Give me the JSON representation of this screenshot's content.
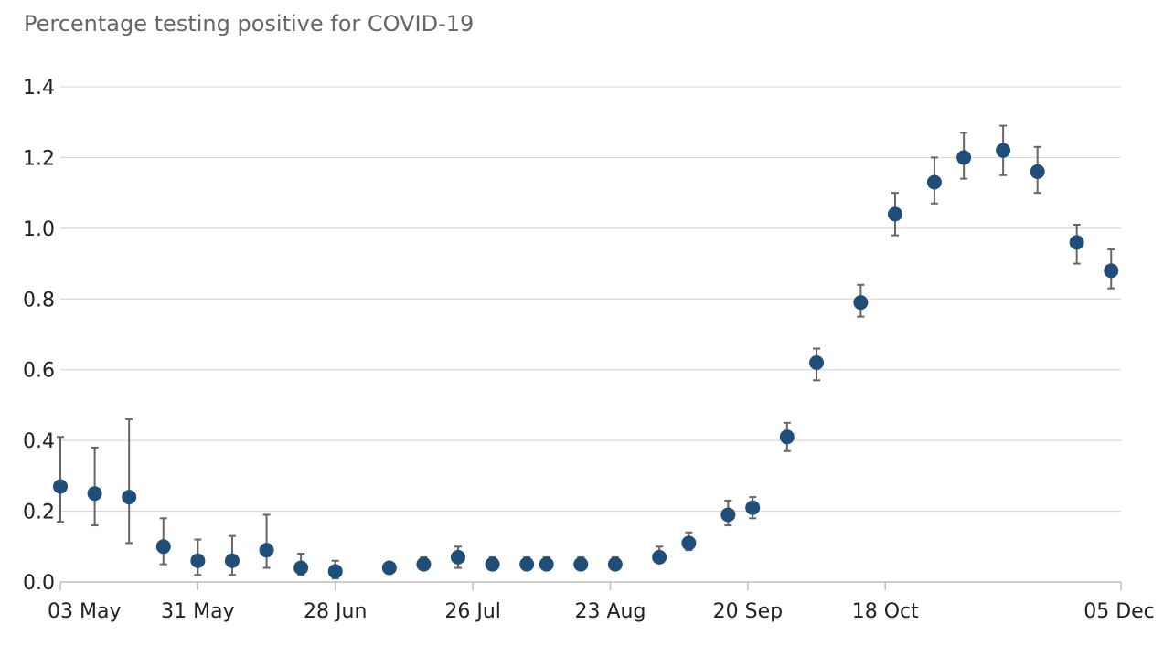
{
  "chart_data": {
    "type": "scatter",
    "title": "Percentage testing positive for COVID-19",
    "xlabel": "",
    "ylabel": "",
    "x_ticks": [
      "03 May",
      "31 May",
      "28 Jun",
      "26 Jul",
      "23 Aug",
      "20 Sep",
      "18 Oct",
      "05 Dec"
    ],
    "y_ticks": [
      "0.0",
      "0.2",
      "0.4",
      "0.6",
      "0.8",
      "1.0",
      "1.2",
      "1.4"
    ],
    "ylim": [
      0,
      1.4
    ],
    "xlim": [
      "2020-05-03",
      "2020-12-05"
    ],
    "grid": true,
    "error_bars": true,
    "colors": {
      "point": "#1f4e79",
      "error_bar": "#666666",
      "grid": "#d9d9d9"
    },
    "points": [
      {
        "x": "2020-05-03",
        "y": 0.27,
        "lo": 0.17,
        "hi": 0.41
      },
      {
        "x": "2020-05-10",
        "y": 0.25,
        "lo": 0.16,
        "hi": 0.38
      },
      {
        "x": "2020-05-17",
        "y": 0.24,
        "lo": 0.11,
        "hi": 0.46
      },
      {
        "x": "2020-05-24",
        "y": 0.1,
        "lo": 0.05,
        "hi": 0.18
      },
      {
        "x": "2020-05-31",
        "y": 0.06,
        "lo": 0.02,
        "hi": 0.12
      },
      {
        "x": "2020-06-07",
        "y": 0.06,
        "lo": 0.02,
        "hi": 0.13
      },
      {
        "x": "2020-06-14",
        "y": 0.09,
        "lo": 0.04,
        "hi": 0.19
      },
      {
        "x": "2020-06-21",
        "y": 0.04,
        "lo": 0.02,
        "hi": 0.08
      },
      {
        "x": "2020-06-28",
        "y": 0.03,
        "lo": 0.01,
        "hi": 0.06
      },
      {
        "x": "2020-07-09",
        "y": 0.04,
        "lo": 0.03,
        "hi": 0.05
      },
      {
        "x": "2020-07-16",
        "y": 0.05,
        "lo": 0.04,
        "hi": 0.07
      },
      {
        "x": "2020-07-23",
        "y": 0.07,
        "lo": 0.04,
        "hi": 0.1
      },
      {
        "x": "2020-07-30",
        "y": 0.05,
        "lo": 0.04,
        "hi": 0.07
      },
      {
        "x": "2020-08-06",
        "y": 0.05,
        "lo": 0.04,
        "hi": 0.07
      },
      {
        "x": "2020-08-10",
        "y": 0.05,
        "lo": 0.04,
        "hi": 0.07
      },
      {
        "x": "2020-08-17",
        "y": 0.05,
        "lo": 0.04,
        "hi": 0.07
      },
      {
        "x": "2020-08-24",
        "y": 0.05,
        "lo": 0.04,
        "hi": 0.07
      },
      {
        "x": "2020-09-02",
        "y": 0.07,
        "lo": 0.06,
        "hi": 0.1
      },
      {
        "x": "2020-09-08",
        "y": 0.11,
        "lo": 0.09,
        "hi": 0.14
      },
      {
        "x": "2020-09-16",
        "y": 0.19,
        "lo": 0.16,
        "hi": 0.23
      },
      {
        "x": "2020-09-21",
        "y": 0.21,
        "lo": 0.18,
        "hi": 0.24
      },
      {
        "x": "2020-09-28",
        "y": 0.41,
        "lo": 0.37,
        "hi": 0.45
      },
      {
        "x": "2020-10-04",
        "y": 0.62,
        "lo": 0.57,
        "hi": 0.66
      },
      {
        "x": "2020-10-13",
        "y": 0.79,
        "lo": 0.75,
        "hi": 0.84
      },
      {
        "x": "2020-10-20",
        "y": 1.04,
        "lo": 0.98,
        "hi": 1.1
      },
      {
        "x": "2020-10-28",
        "y": 1.13,
        "lo": 1.07,
        "hi": 1.2
      },
      {
        "x": "2020-11-03",
        "y": 1.2,
        "lo": 1.14,
        "hi": 1.27
      },
      {
        "x": "2020-11-11",
        "y": 1.22,
        "lo": 1.15,
        "hi": 1.29
      },
      {
        "x": "2020-11-18",
        "y": 1.16,
        "lo": 1.1,
        "hi": 1.23
      },
      {
        "x": "2020-11-26",
        "y": 0.96,
        "lo": 0.9,
        "hi": 1.01
      },
      {
        "x": "2020-12-03",
        "y": 0.88,
        "lo": 0.83,
        "hi": 0.94
      }
    ]
  }
}
